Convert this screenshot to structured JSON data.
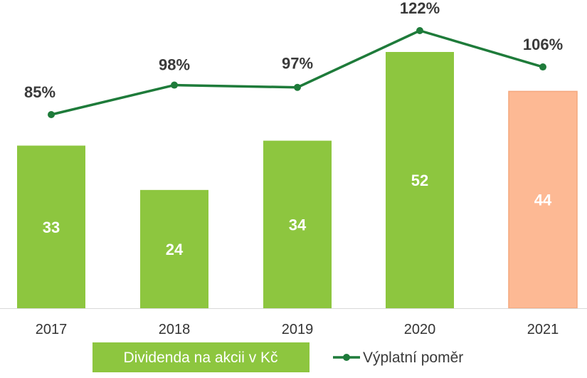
{
  "chart_data": {
    "type": "bar",
    "categories": [
      "2017",
      "2018",
      "2019",
      "2020",
      "2021"
    ],
    "series": [
      {
        "name": "Dividenda na akcii v Kč",
        "type": "bar",
        "values": [
          33,
          24,
          34,
          52,
          44
        ],
        "colors": [
          "#8dc63f",
          "#8dc63f",
          "#8dc63f",
          "#8dc63f",
          "#fdb994"
        ],
        "labels": [
          "33",
          "24",
          "34",
          "52",
          "44"
        ]
      },
      {
        "name": "Výplatní poměr",
        "type": "line",
        "values": [
          85,
          98,
          97,
          122,
          106
        ],
        "color": "#1e7b3a",
        "labels": [
          "85%",
          "98%",
          "97%",
          "122%",
          "106%"
        ]
      }
    ],
    "title": "",
    "xlabel": "",
    "ylabel": "",
    "grid": false,
    "legend": "bottom",
    "colors": {
      "bar": "#8dc63f",
      "bar_highlight": "#fdb994",
      "bar_highlight_border": "#f4a77d",
      "line": "#1e7b3a",
      "legend_text_on_bar": "#ffffff",
      "legend_text": "#3a3a3a",
      "axis": "#d9d9d9"
    }
  }
}
